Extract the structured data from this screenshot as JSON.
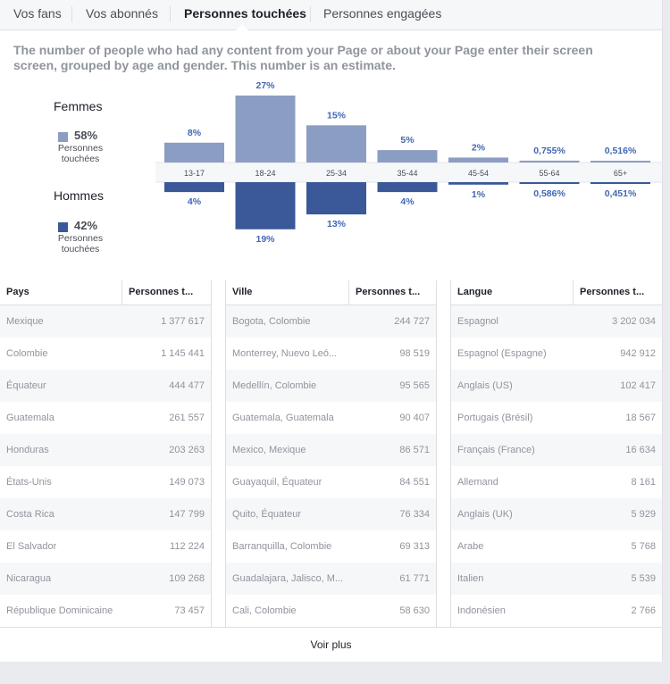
{
  "tabs": [
    {
      "label": "Vos fans"
    },
    {
      "label": "Vos abonnés"
    },
    {
      "label": "Personnes touchées",
      "active": true
    },
    {
      "label": "Personnes engagées"
    }
  ],
  "description": "The number of people who had any content from your Page or about your Page enter their screen screen, grouped by age and gender. This number is an estimate.",
  "legend": {
    "women": {
      "title": "Femmes",
      "percent": "58%",
      "sub_line1": "Personnes",
      "sub_line2": "touchées",
      "color": "#8b9dc3"
    },
    "men": {
      "title": "Hommes",
      "percent": "42%",
      "sub_line1": "Personnes",
      "sub_line2": "touchées",
      "color": "#3b5998"
    }
  },
  "chart_data": {
    "type": "bar",
    "categories": [
      "13-17",
      "18-24",
      "25-34",
      "35-44",
      "45-54",
      "55-64",
      "65+"
    ],
    "series": [
      {
        "name": "Femmes",
        "values": [
          8,
          27,
          15,
          5,
          2,
          0.755,
          0.516
        ],
        "labels": [
          "8%",
          "27%",
          "15%",
          "5%",
          "2%",
          "0,755%",
          "0,516%"
        ],
        "color": "#8b9dc3"
      },
      {
        "name": "Hommes",
        "values": [
          4,
          19,
          13,
          4,
          1,
          0.586,
          0.451
        ],
        "labels": [
          "4%",
          "19%",
          "13%",
          "4%",
          "1%",
          "0,586%",
          "0,451%"
        ],
        "color": "#3b5998"
      }
    ]
  },
  "tables": [
    {
      "col1": "Pays",
      "col2": "Personnes t...",
      "rows": [
        {
          "name": "Mexique",
          "value": "1 377 617"
        },
        {
          "name": "Colombie",
          "value": "1 145 441"
        },
        {
          "name": "Équateur",
          "value": "444 477"
        },
        {
          "name": "Guatemala",
          "value": "261 557"
        },
        {
          "name": "Honduras",
          "value": "203 263"
        },
        {
          "name": "États-Unis",
          "value": "149 073"
        },
        {
          "name": "Costa Rica",
          "value": "147 799"
        },
        {
          "name": "El Salvador",
          "value": "112 224"
        },
        {
          "name": "Nicaragua",
          "value": "109 268"
        },
        {
          "name": "République Dominicaine",
          "value": "73 457"
        }
      ]
    },
    {
      "col1": "Ville",
      "col2": "Personnes t...",
      "rows": [
        {
          "name": "Bogota, Colombie",
          "value": "244 727"
        },
        {
          "name": "Monterrey, Nuevo Leó...",
          "value": "98 519"
        },
        {
          "name": "Medellín, Colombie",
          "value": "95 565"
        },
        {
          "name": "Guatemala, Guatemala",
          "value": "90 407"
        },
        {
          "name": "Mexico, Mexique",
          "value": "86 571"
        },
        {
          "name": "Guayaquil, Équateur",
          "value": "84 551"
        },
        {
          "name": "Quito, Équateur",
          "value": "76 334"
        },
        {
          "name": "Barranquilla, Colombie",
          "value": "69 313"
        },
        {
          "name": "Guadalajara, Jalisco, M...",
          "value": "61 771"
        },
        {
          "name": "Cali, Colombie",
          "value": "58 630"
        }
      ]
    },
    {
      "col1": "Langue",
      "col2": "Personnes t...",
      "rows": [
        {
          "name": "Espagnol",
          "value": "3 202 034"
        },
        {
          "name": "Espagnol (Espagne)",
          "value": "942 912"
        },
        {
          "name": "Anglais (US)",
          "value": "102 417"
        },
        {
          "name": "Portugais (Brésil)",
          "value": "18 567"
        },
        {
          "name": "Français (France)",
          "value": "16 634"
        },
        {
          "name": "Allemand",
          "value": "8 161"
        },
        {
          "name": "Anglais (UK)",
          "value": "5 929"
        },
        {
          "name": "Arabe",
          "value": "5 768"
        },
        {
          "name": "Italien",
          "value": "5 539"
        },
        {
          "name": "Indonésien",
          "value": "2 766"
        }
      ]
    }
  ],
  "see_more": "Voir plus"
}
